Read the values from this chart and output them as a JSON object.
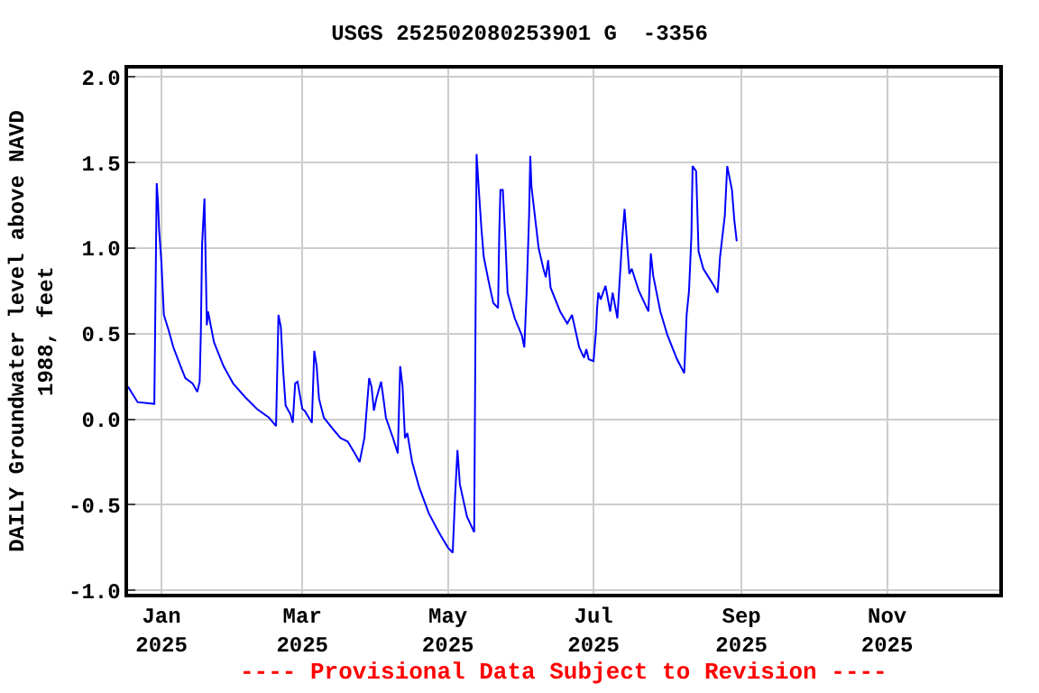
{
  "chart_data": {
    "type": "line",
    "title": "USGS 252502080253901 G  -3356",
    "ylabel": "DAILY Groundwater level above NAVD 1988, feet",
    "annotations": [
      "---- Provisional Data Subject to Revision ----"
    ],
    "x": [
      "2024-12-18",
      "2024-12-22",
      "2024-12-29",
      "2024-12-29T12:00",
      "2024-12-30",
      "2024-12-30T12:00",
      "2024-12-31",
      "2025-01-01",
      "2025-01-02",
      "2025-01-04",
      "2025-01-06",
      "2025-01-09",
      "2025-01-11",
      "2025-01-14",
      "2025-01-16",
      "2025-01-17",
      "2025-01-17T12:00",
      "2025-01-18",
      "2025-01-19",
      "2025-01-19T12:00",
      "2025-01-20",
      "2025-01-20T12:00",
      "2025-01-23",
      "2025-01-27",
      "2025-01-31",
      "2025-02-05",
      "2025-02-10",
      "2025-02-15",
      "2025-02-18",
      "2025-02-19",
      "2025-02-20",
      "2025-02-21",
      "2025-02-22",
      "2025-02-24",
      "2025-02-25",
      "2025-02-26",
      "2025-02-27",
      "2025-03-01",
      "2025-03-02",
      "2025-03-05",
      "2025-03-06",
      "2025-03-07",
      "2025-03-08",
      "2025-03-10",
      "2025-03-14",
      "2025-03-17",
      "2025-03-20",
      "2025-03-23",
      "2025-03-25",
      "2025-03-27",
      "2025-03-29",
      "2025-03-30",
      "2025-03-31",
      "2025-04-01",
      "2025-04-03",
      "2025-04-04",
      "2025-04-05",
      "2025-04-08",
      "2025-04-10",
      "2025-04-11",
      "2025-04-12",
      "2025-04-13",
      "2025-04-14",
      "2025-04-16",
      "2025-04-19",
      "2025-04-23",
      "2025-04-26",
      "2025-04-28",
      "2025-05-01",
      "2025-05-03",
      "2025-05-04",
      "2025-05-05",
      "2025-05-06",
      "2025-05-09",
      "2025-05-12",
      "2025-05-12T12:00",
      "2025-05-13",
      "2025-05-14",
      "2025-05-15",
      "2025-05-16",
      "2025-05-18",
      "2025-05-20",
      "2025-05-22",
      "2025-05-22T12:00",
      "2025-05-23",
      "2025-05-24",
      "2025-05-25",
      "2025-05-26",
      "2025-05-29",
      "2025-06-01",
      "2025-06-02",
      "2025-06-03",
      "2025-06-04",
      "2025-06-04T12:00",
      "2025-06-05",
      "2025-06-08",
      "2025-06-10",
      "2025-06-11",
      "2025-06-12",
      "2025-06-13",
      "2025-06-17",
      "2025-06-20",
      "2025-06-22",
      "2025-06-25",
      "2025-06-27",
      "2025-06-28",
      "2025-06-29",
      "2025-07-01",
      "2025-07-02",
      "2025-07-02T12:00",
      "2025-07-03",
      "2025-07-04",
      "2025-07-06",
      "2025-07-08",
      "2025-07-09",
      "2025-07-11",
      "2025-07-13",
      "2025-07-14",
      "2025-07-16",
      "2025-07-17",
      "2025-07-20",
      "2025-07-24",
      "2025-07-25",
      "2025-07-26",
      "2025-07-29",
      "2025-08-01",
      "2025-08-05",
      "2025-08-08",
      "2025-08-09",
      "2025-08-10",
      "2025-08-11",
      "2025-08-11T12:00",
      "2025-08-13",
      "2025-08-14",
      "2025-08-16",
      "2025-08-20",
      "2025-08-22",
      "2025-08-23",
      "2025-08-25",
      "2025-08-26",
      "2025-08-28",
      "2025-08-29",
      "2025-08-30"
    ],
    "series": [
      {
        "color": "#0000ff",
        "values": [
          0.19,
          0.1,
          0.09,
          0.74,
          1.38,
          1.28,
          1.11,
          0.91,
          0.61,
          0.52,
          0.42,
          0.31,
          0.24,
          0.21,
          0.16,
          0.22,
          0.51,
          1.02,
          1.29,
          0.93,
          0.55,
          0.63,
          0.45,
          0.31,
          0.21,
          0.13,
          0.06,
          0.01,
          -0.04,
          0.61,
          0.54,
          0.28,
          0.08,
          0.03,
          -0.02,
          0.21,
          0.22,
          0.06,
          0.05,
          -0.02,
          0.4,
          0.31,
          0.12,
          0.01,
          -0.06,
          -0.11,
          -0.13,
          -0.2,
          -0.25,
          -0.11,
          0.24,
          0.19,
          0.05,
          0.12,
          0.22,
          0.12,
          0.01,
          -0.11,
          -0.2,
          0.31,
          0.19,
          -0.11,
          -0.08,
          -0.25,
          -0.4,
          -0.55,
          -0.63,
          -0.68,
          -0.75,
          -0.78,
          -0.45,
          -0.18,
          -0.38,
          -0.57,
          -0.66,
          0.43,
          1.55,
          1.33,
          1.12,
          0.95,
          0.81,
          0.68,
          0.65,
          1.08,
          1.34,
          1.34,
          1.07,
          0.74,
          0.59,
          0.49,
          0.42,
          0.75,
          1.19,
          1.54,
          1.36,
          1.0,
          0.88,
          0.83,
          0.93,
          0.77,
          0.63,
          0.56,
          0.61,
          0.42,
          0.36,
          0.41,
          0.35,
          0.34,
          0.51,
          0.65,
          0.74,
          0.7,
          0.78,
          0.63,
          0.74,
          0.59,
          1.05,
          1.23,
          0.85,
          0.88,
          0.75,
          0.63,
          0.97,
          0.84,
          0.63,
          0.49,
          0.35,
          0.27,
          0.61,
          0.75,
          1.07,
          1.48,
          1.45,
          0.98,
          0.88,
          0.79,
          0.74,
          0.95,
          1.19,
          1.48,
          1.34,
          1.16,
          1.04
        ]
      }
    ],
    "xlim": [
      "2024-12-18",
      "2025-12-18"
    ],
    "xticks": [
      {
        "value": "2025-01-01",
        "label": "Jan\n2025"
      },
      {
        "value": "2025-03-01",
        "label": "Mar\n2025"
      },
      {
        "value": "2025-05-01",
        "label": "May\n2025"
      },
      {
        "value": "2025-07-01",
        "label": "Jul\n2025"
      },
      {
        "value": "2025-09-01",
        "label": "Sep\n2025"
      },
      {
        "value": "2025-11-01",
        "label": "Nov\n2025"
      }
    ],
    "ylim": [
      -1.02,
      2.05
    ],
    "yticks": [
      {
        "value": -1,
        "label": "-1.0"
      },
      {
        "value": -0.5,
        "label": "-0.5"
      },
      {
        "value": 0,
        "label": "0.0"
      },
      {
        "value": 0.5,
        "label": "0.5"
      },
      {
        "value": 1,
        "label": "1.0"
      },
      {
        "value": 1.5,
        "label": "1.5"
      },
      {
        "value": 2,
        "label": "2.0"
      }
    ],
    "grid": true
  }
}
